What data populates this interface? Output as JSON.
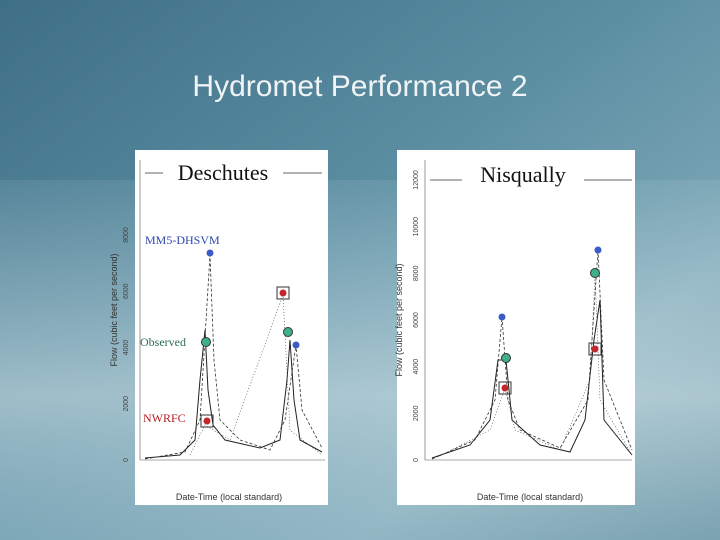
{
  "slide": {
    "title": "Hydromet Performance 2",
    "panels": [
      {
        "name": "Deschutes",
        "y_axis_label": "Flow (cubic feet per second)",
        "x_axis_label": "Date-Time (local standard)",
        "yticks": [
          "0",
          "2000",
          "4000",
          "6000",
          "8000"
        ],
        "legend": [
          "MM5-DHSVM",
          "Observed",
          "NWRFC"
        ]
      },
      {
        "name": "Nisqually",
        "y_axis_label": "Flow (cubic feet per second)",
        "x_axis_label": "Date-Time (local standard)",
        "yticks": [
          "0",
          "2000",
          "4000",
          "6000",
          "8000",
          "10000",
          "12000"
        ]
      }
    ]
  }
}
